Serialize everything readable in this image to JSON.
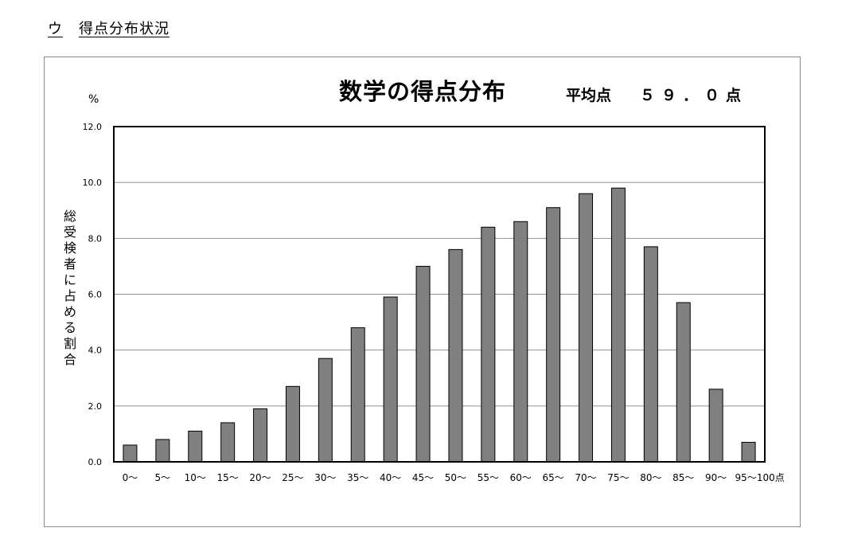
{
  "section": {
    "marker": "ウ",
    "heading": "得点分布状況"
  },
  "chart_data": {
    "type": "bar",
    "title": "数学の得点分布",
    "average_label": "平均点",
    "average_value": "５９．０点",
    "ylabel": "総受検者に占める割合",
    "yunit": "%",
    "xlabel": "",
    "categories": [
      "0～",
      "5～",
      "10～",
      "15～",
      "20～",
      "25～",
      "30～",
      "35～",
      "40～",
      "45～",
      "50～",
      "55～",
      "60～",
      "65～",
      "70～",
      "75～",
      "80～",
      "85～",
      "90～",
      "95～100点"
    ],
    "values": [
      0.6,
      0.8,
      1.1,
      1.4,
      1.9,
      2.7,
      3.7,
      4.8,
      5.9,
      7.0,
      7.6,
      8.4,
      8.6,
      9.1,
      9.6,
      9.8,
      7.7,
      5.7,
      2.6,
      0.7
    ],
    "ylim": [
      0,
      12
    ],
    "yticks": [
      "0.0",
      "2.0",
      "4.0",
      "6.0",
      "8.0",
      "10.0",
      "12.0"
    ],
    "grid": true,
    "bar_color": "#808080"
  }
}
